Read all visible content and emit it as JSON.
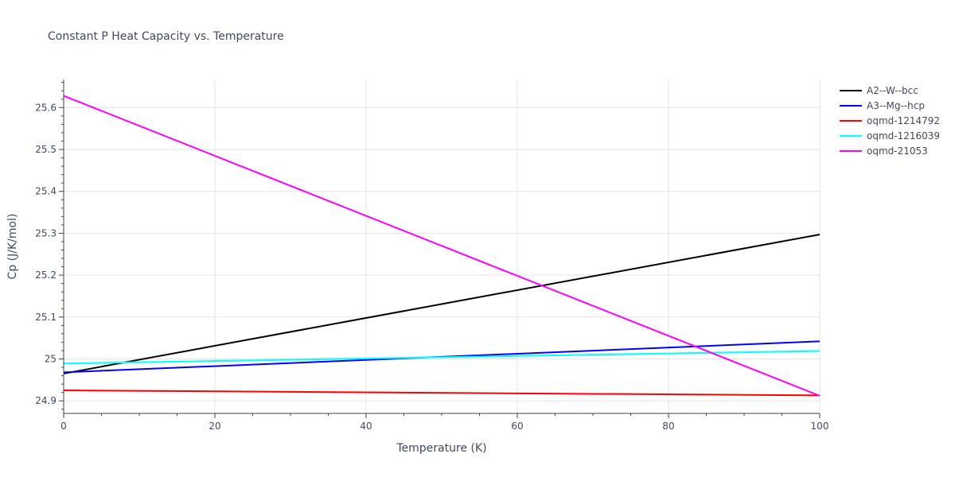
{
  "chart_data": {
    "type": "line",
    "title": "Constant P Heat Capacity vs. Temperature",
    "xlabel": "Temperature (K)",
    "ylabel": "Cp (J/K/mol)",
    "xlim": [
      0,
      100
    ],
    "ylim": [
      24.87,
      25.667
    ],
    "x_ticks": [
      0,
      20,
      40,
      60,
      80,
      100
    ],
    "x_tick_labels": [
      "0",
      "20",
      "40",
      "60",
      "80",
      "100"
    ],
    "y_ticks": [
      24.9,
      25.0,
      25.1,
      25.2,
      25.3,
      25.4,
      25.5,
      25.6
    ],
    "y_tick_labels": [
      "24.9",
      "25",
      "25.1",
      "25.2",
      "25.3",
      "25.4",
      "25.5",
      "25.6"
    ],
    "grid": true,
    "legend_position": "right",
    "series": [
      {
        "name": "A2--W--bcc",
        "color": "#000000",
        "x": [
          0,
          100
        ],
        "y": [
          24.965,
          25.297
        ]
      },
      {
        "name": "A3--Mg--hcp",
        "color": "#0000ff",
        "x": [
          0,
          100
        ],
        "y": [
          24.968,
          25.042
        ]
      },
      {
        "name": "oqmd-1214792",
        "color": "#ff0000",
        "x": [
          0,
          100
        ],
        "y": [
          24.925,
          24.913
        ]
      },
      {
        "name": "oqmd-1216039",
        "color": "#00ffff",
        "x": [
          0,
          100
        ],
        "y": [
          24.989,
          25.019
        ]
      },
      {
        "name": "oqmd-21053",
        "color": "#ff00ff",
        "x": [
          0,
          100
        ],
        "y": [
          25.628,
          24.912
        ]
      }
    ]
  }
}
